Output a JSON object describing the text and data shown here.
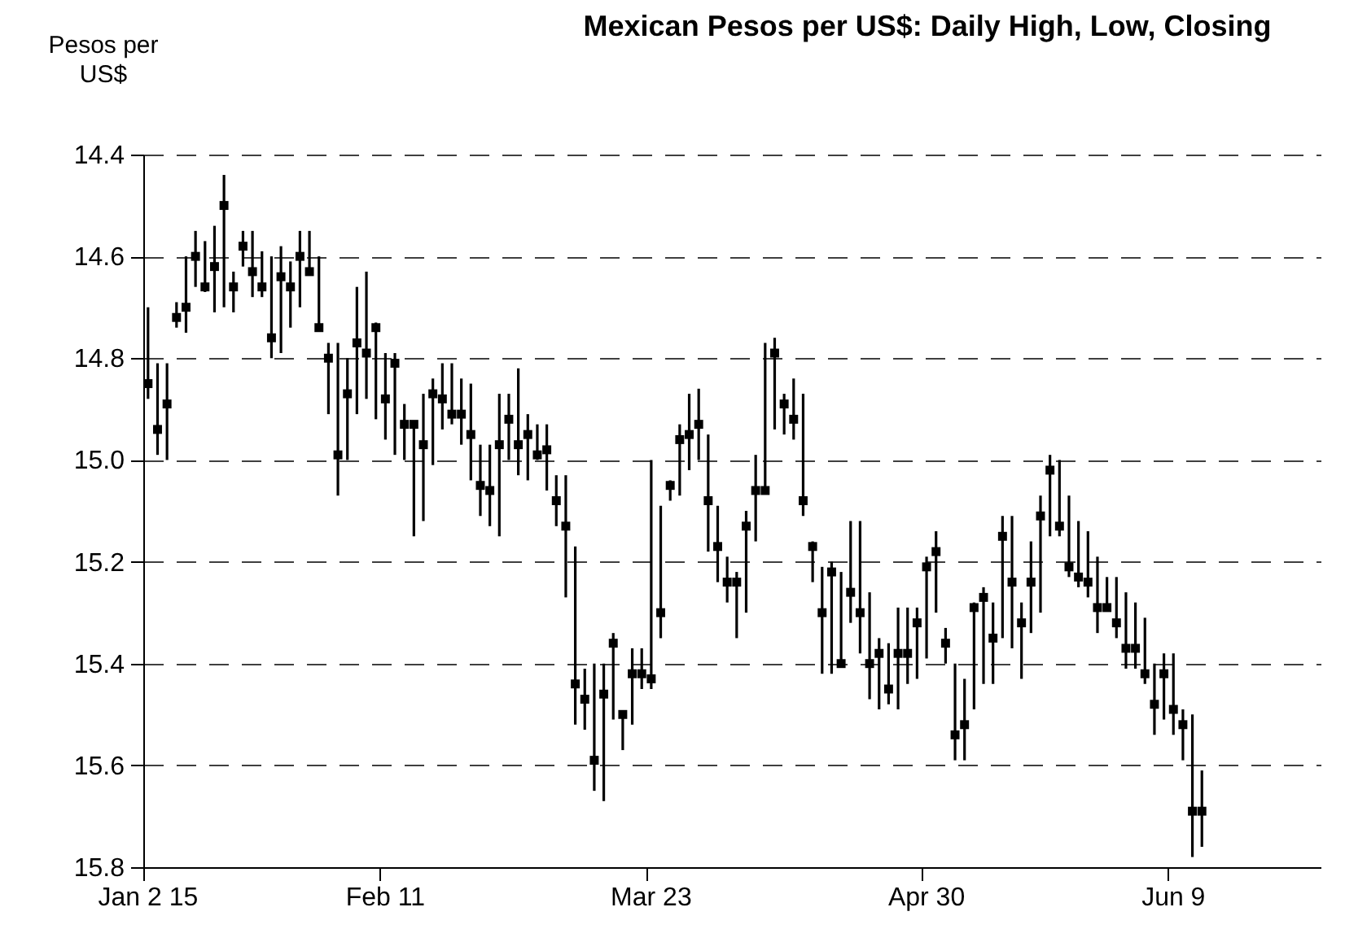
{
  "chart_data": {
    "type": "bar",
    "title": "Mexican Pesos per US$: Daily High, Low, Closing",
    "ylabel": "Pesos per US$",
    "categories": [
      "Jan 2 15",
      null,
      null,
      null,
      null,
      null,
      null,
      null,
      null,
      null,
      null,
      null,
      null,
      null,
      null,
      null,
      null,
      null,
      null,
      null,
      null,
      null,
      null,
      null,
      null,
      "Feb 11",
      null,
      null,
      null,
      null,
      null,
      null,
      null,
      null,
      null,
      null,
      null,
      null,
      null,
      null,
      null,
      null,
      null,
      null,
      null,
      null,
      null,
      null,
      null,
      null,
      null,
      null,
      null,
      "Mar 23",
      null,
      null,
      null,
      null,
      null,
      null,
      null,
      null,
      null,
      null,
      null,
      null,
      null,
      null,
      null,
      null,
      null,
      null,
      null,
      null,
      null,
      null,
      null,
      null,
      null,
      null,
      null,
      null,
      "Apr 30",
      null,
      null,
      null,
      null,
      null,
      null,
      null,
      null,
      null,
      null,
      null,
      null,
      null,
      null,
      null,
      null,
      null,
      null,
      null,
      null,
      null,
      null,
      null,
      null,
      null,
      "Jun 9",
      null,
      null,
      null,
      null,
      null,
      null,
      null,
      null,
      null,
      null,
      null,
      null,
      null,
      null,
      null
    ],
    "series": [
      {
        "type": "bar",
        "color": "#000000",
        "base": [
          14.7,
          14.81,
          14.81,
          14.69,
          14.6,
          14.55,
          14.57,
          14.54,
          14.44,
          14.63,
          14.55,
          14.55,
          14.59,
          14.6,
          14.58,
          14.61,
          14.55,
          14.55,
          14.6,
          14.77,
          14.77,
          14.8,
          14.66,
          14.63,
          14.73,
          14.79,
          14.79,
          14.89,
          14.93,
          14.87,
          14.84,
          14.81,
          14.81,
          14.84,
          14.85,
          14.97,
          14.97,
          14.87,
          14.87,
          14.82,
          14.91,
          14.93,
          14.93,
          15.03,
          15.03,
          15.17,
          15.41,
          15.4,
          15.4,
          15.34,
          15.5,
          15.37,
          15.37,
          15.0,
          15.09,
          15.04,
          14.93,
          14.87,
          14.86,
          14.95,
          15.09,
          15.19,
          15.22,
          15.1,
          14.99,
          14.77,
          14.76,
          14.87,
          14.84,
          14.87,
          15.16,
          15.21,
          15.2,
          15.22,
          15.12,
          15.12,
          15.26,
          15.35,
          15.36,
          15.29,
          15.29,
          15.29,
          15.19,
          15.14,
          15.33,
          15.4,
          15.43,
          15.28,
          15.25,
          15.28,
          15.11,
          15.11,
          15.28,
          15.16,
          15.07,
          14.99,
          15.0,
          15.07,
          15.12,
          15.14,
          15.19,
          15.23,
          15.23,
          15.26,
          15.28,
          15.31,
          15.4,
          15.38,
          15.38,
          15.49,
          15.5,
          15.61,
          null,
          null,
          null,
          null,
          null,
          null,
          null,
          null,
          null,
          null,
          null,
          null
        ],
        "values": [
          0.18,
          0.18,
          0.19,
          0.05,
          0.15,
          0.11,
          0.1,
          0.17,
          0.26,
          0.08,
          0.07,
          0.13,
          0.09,
          0.2,
          0.21,
          0.13,
          0.15,
          0.08,
          0.14,
          0.14,
          0.3,
          0.2,
          0.25,
          0.25,
          0.19,
          0.17,
          0.2,
          0.11,
          0.22,
          0.25,
          0.17,
          0.13,
          0.12,
          0.13,
          0.19,
          0.14,
          0.16,
          0.28,
          0.13,
          0.21,
          0.13,
          0.07,
          0.13,
          0.1,
          0.24,
          0.35,
          0.12,
          0.25,
          0.27,
          0.17,
          0.07,
          0.15,
          0.08,
          0.45,
          0.26,
          0.04,
          0.14,
          0.15,
          0.14,
          0.23,
          0.15,
          0.09,
          0.13,
          0.2,
          0.17,
          0.29,
          0.18,
          0.08,
          0.12,
          0.24,
          0.08,
          0.21,
          0.22,
          0.18,
          0.2,
          0.26,
          0.21,
          0.14,
          0.12,
          0.2,
          0.15,
          0.14,
          0.2,
          0.16,
          0.07,
          0.19,
          0.16,
          0.21,
          0.19,
          0.16,
          0.24,
          0.26,
          0.15,
          0.18,
          0.23,
          0.16,
          0.15,
          0.16,
          0.13,
          0.13,
          0.15,
          0.06,
          0.12,
          0.15,
          0.13,
          0.13,
          0.14,
          0.13,
          0.16,
          0.1,
          0.28,
          0.15,
          null,
          null,
          null,
          null,
          null,
          null,
          null,
          null,
          null,
          null,
          null,
          null
        ]
      },
      {
        "type": "scatter",
        "color": "#000000",
        "values": [
          14.85,
          14.94,
          14.89,
          14.72,
          14.7,
          14.6,
          14.66,
          14.62,
          14.5,
          14.66,
          14.58,
          14.63,
          14.66,
          14.76,
          14.64,
          14.66,
          14.6,
          14.63,
          14.74,
          14.8,
          14.99,
          14.87,
          14.77,
          14.79,
          14.74,
          14.88,
          14.81,
          14.93,
          14.93,
          14.97,
          14.87,
          14.88,
          14.91,
          14.91,
          14.95,
          15.05,
          15.06,
          14.97,
          14.92,
          14.97,
          14.95,
          14.99,
          14.98,
          15.08,
          15.13,
          15.44,
          15.47,
          15.59,
          15.46,
          15.36,
          15.5,
          15.42,
          15.42,
          15.43,
          15.3,
          15.05,
          14.96,
          14.95,
          14.93,
          15.08,
          15.17,
          15.24,
          15.24,
          15.13,
          15.06,
          15.06,
          14.79,
          14.89,
          14.92,
          15.08,
          15.17,
          15.3,
          15.22,
          15.4,
          15.26,
          15.3,
          15.4,
          15.38,
          15.45,
          15.38,
          15.38,
          15.32,
          15.21,
          15.18,
          15.36,
          15.54,
          15.52,
          15.29,
          15.27,
          15.35,
          15.15,
          15.24,
          15.32,
          15.24,
          15.11,
          15.02,
          15.13,
          15.21,
          15.23,
          15.24,
          15.29,
          15.29,
          15.32,
          15.37,
          15.37,
          15.42,
          15.48,
          15.42,
          15.49,
          15.52,
          15.69,
          15.69,
          null,
          null,
          null,
          null,
          null,
          null,
          null,
          null,
          null,
          null,
          null,
          null
        ]
      }
    ],
    "marker": "square",
    "ylim": [
      15.8,
      14.4
    ],
    "yticks": [
      14.4,
      14.6,
      14.8,
      {
        "value": 15.0,
        "label": "15.0"
      },
      15.2,
      15.4,
      15.6,
      15.8
    ],
    "grid": "y"
  }
}
